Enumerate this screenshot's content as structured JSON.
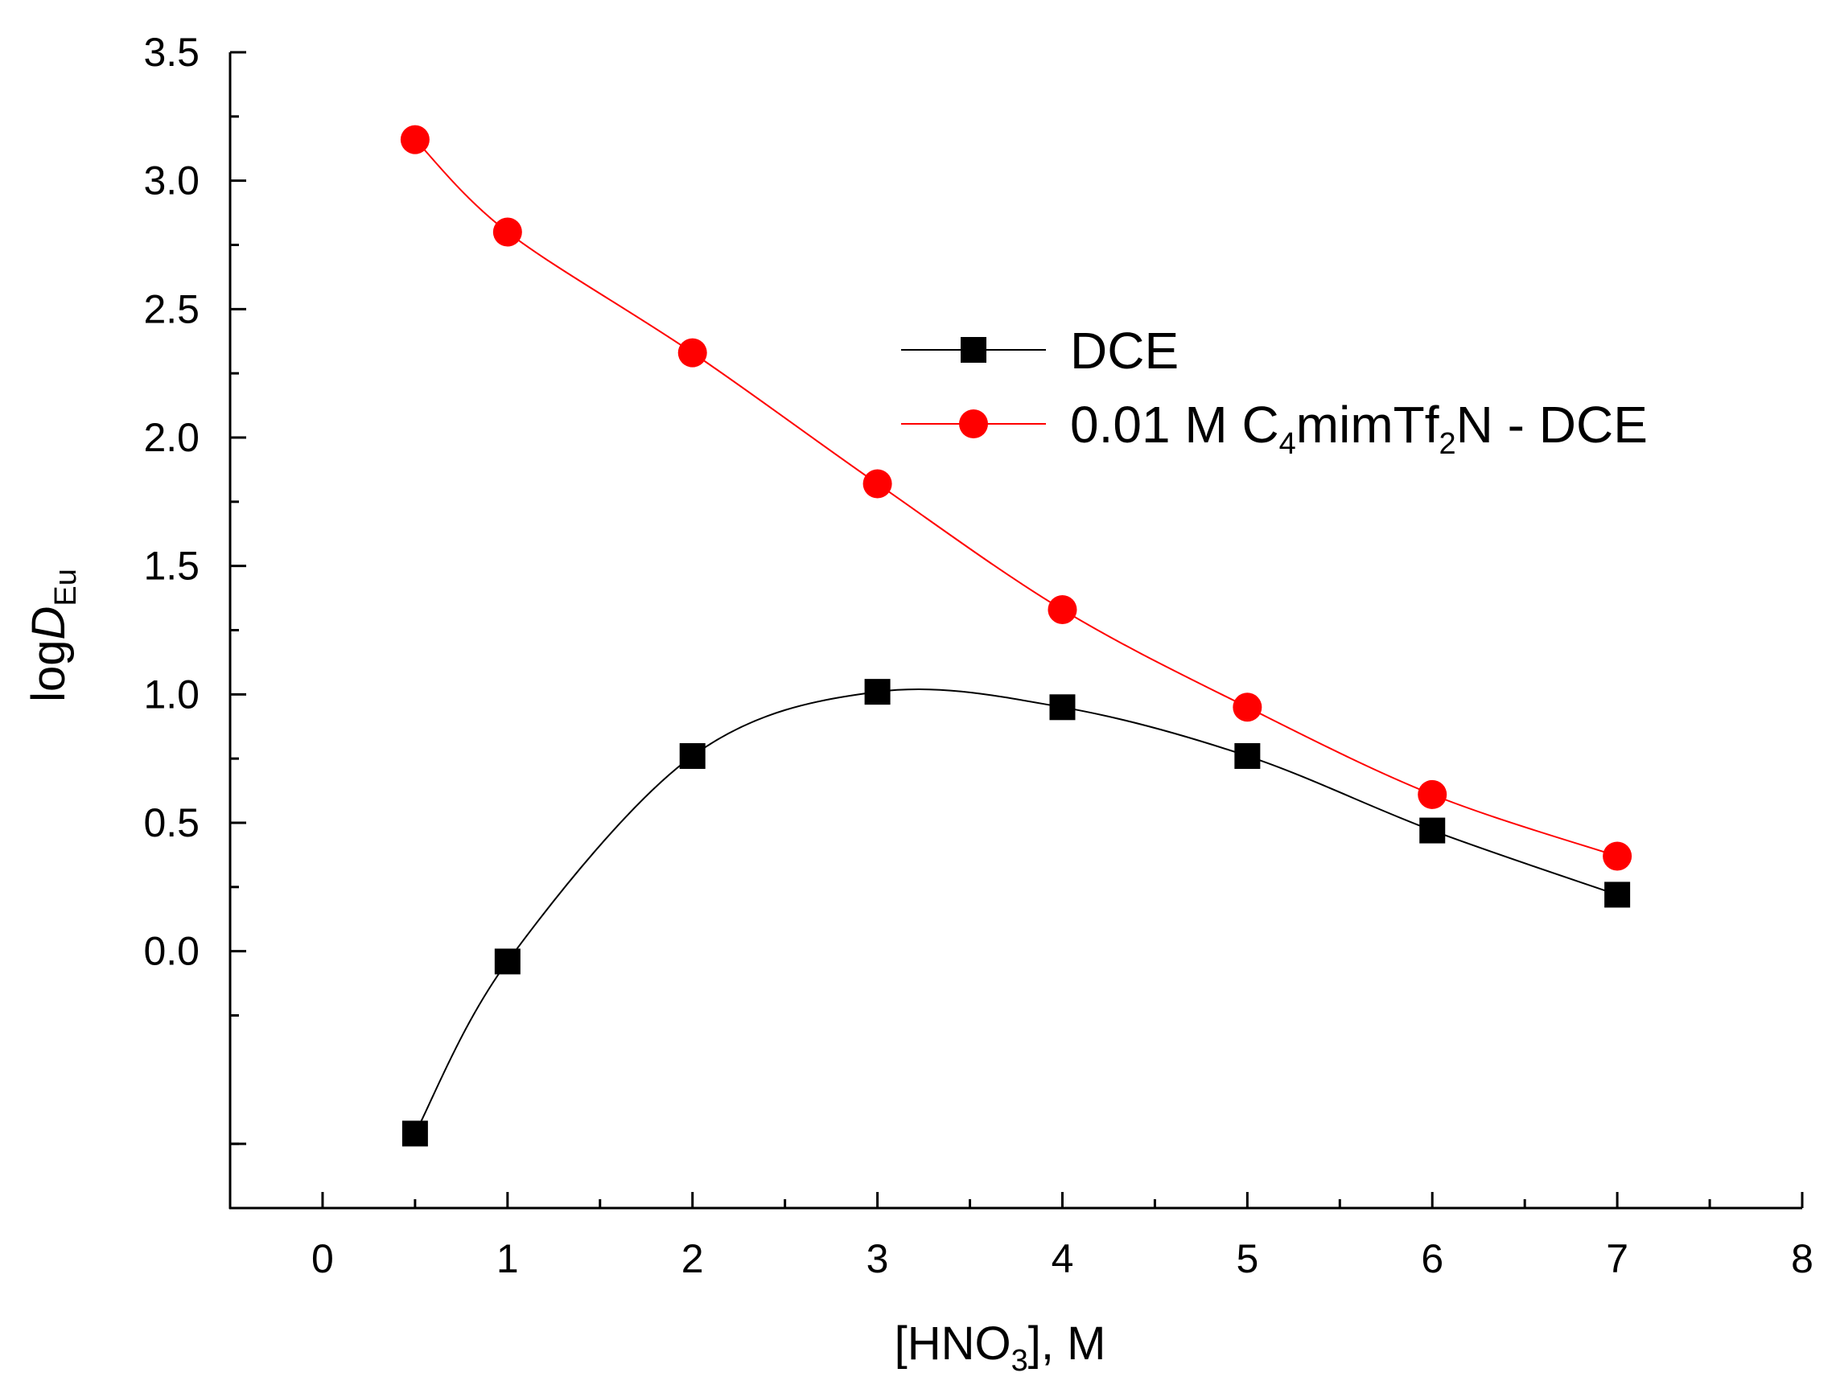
{
  "chart_data": {
    "type": "line",
    "title": "",
    "xlabel": {
      "prefix": "[HNO",
      "sub": "3",
      "suffix": "], M"
    },
    "ylabel": {
      "prefix": "log",
      "italic": "D",
      "sub": "Eu"
    },
    "xlim": [
      -0.5,
      8
    ],
    "ylim": [
      -1.0,
      3.5
    ],
    "xticks": [
      0,
      1,
      2,
      3,
      4,
      5,
      6,
      7,
      8
    ],
    "xtick_labels": [
      "0",
      "1",
      "2",
      "3",
      "4",
      "5",
      "6",
      "7",
      "8"
    ],
    "yticks": [
      0.0,
      0.5,
      1.0,
      1.5,
      2.0,
      2.5,
      3.0,
      3.5
    ],
    "ytick_labels": [
      "0.0",
      "0.5",
      "1.0",
      "1.5",
      "2.0",
      "2.5",
      "3.0",
      "3.5"
    ],
    "legend_position": "upper-right",
    "series": [
      {
        "name": "DCE",
        "legend_parts": [
          {
            "text": "DCE"
          }
        ],
        "marker": "square",
        "color": "#000000",
        "x": [
          0.5,
          1,
          2,
          3,
          4,
          5,
          6,
          7
        ],
        "values": [
          -0.71,
          -0.04,
          0.76,
          1.01,
          0.95,
          0.76,
          0.47,
          0.22
        ]
      },
      {
        "name": "0.01 M C4mimTf2N - DCE",
        "legend_parts": [
          {
            "text": "0.01 M C"
          },
          {
            "sub": "4"
          },
          {
            "text": "mimTf"
          },
          {
            "sub": "2"
          },
          {
            "text": "N - DCE"
          }
        ],
        "marker": "circle",
        "color": "#ff0000",
        "x": [
          0.5,
          1,
          2,
          3,
          4,
          5,
          6,
          7
        ],
        "values": [
          3.16,
          2.8,
          2.33,
          1.82,
          1.33,
          0.95,
          0.61,
          0.37
        ]
      }
    ]
  }
}
